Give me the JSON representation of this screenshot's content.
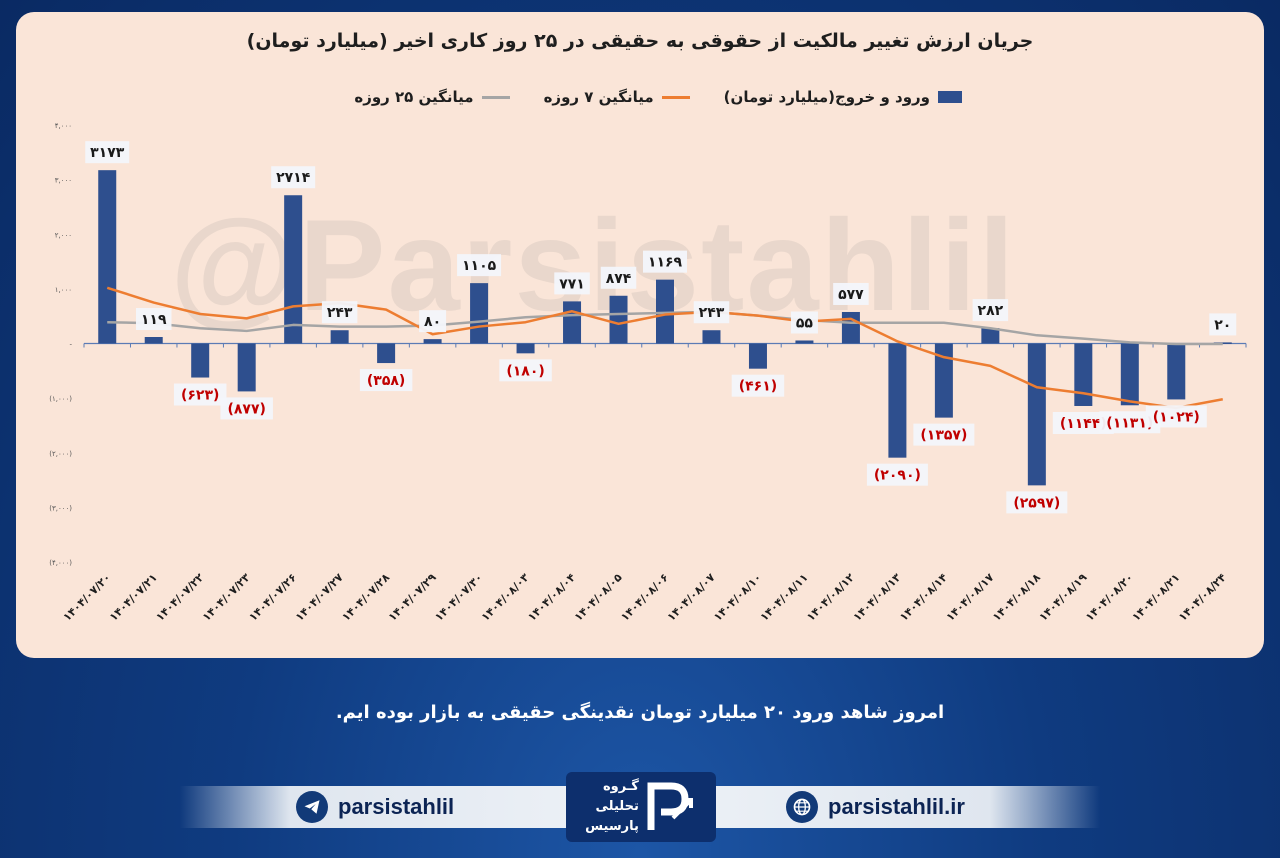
{
  "title": "جریان ارزش تغییر مالکیت از حقوقی به حقیقی در ۲۵ روز کاری اخیر (میلیارد تومان)",
  "legend": {
    "bars": "ورود و خروج(میلیارد تومان)",
    "ma7": "میانگین ۷ روزه",
    "ma25": "میانگین ۲۵ روزه"
  },
  "colors": {
    "bar": "#2e4f8e",
    "ma7": "#ed7d31",
    "ma25": "#a5a5a5",
    "negative_label": "#c00000",
    "positive_label": "#1a1a1a",
    "axis": "#5b7bb5"
  },
  "watermark": "@Parsistahlil",
  "caption": "امروز شاهد ورود ۲۰ میلیارد تومان نقدینگی حقیقی به بازار بوده ایم.",
  "footer": {
    "telegram": "parsistahlil",
    "telegram_icon": "telegram-plane-icon",
    "website": "parsistahlil.ir",
    "website_icon": "globe-icon",
    "logo_lines": [
      "گـروه",
      "تحلیلی",
      "پارسیس"
    ]
  },
  "chart_data": {
    "type": "bar",
    "categories": [
      "۱۴۰۴/۰۷/۲۰",
      "۱۴۰۴/۰۷/۲۱",
      "۱۴۰۴/۰۷/۲۲",
      "۱۴۰۴/۰۷/۲۳",
      "۱۴۰۴/۰۷/۲۶",
      "۱۴۰۴/۰۷/۲۷",
      "۱۴۰۴/۰۷/۲۸",
      "۱۴۰۴/۰۷/۲۹",
      "۱۴۰۴/۰۷/۳۰",
      "۱۴۰۴/۰۸/۰۳",
      "۱۴۰۴/۰۸/۰۴",
      "۱۴۰۴/۰۸/۰۵",
      "۱۴۰۴/۰۸/۰۶",
      "۱۴۰۴/۰۸/۰۷",
      "۱۴۰۴/۰۸/۱۰",
      "۱۴۰۴/۰۸/۱۱",
      "۱۴۰۴/۰۸/۱۲",
      "۱۴۰۴/۰۸/۱۳",
      "۱۴۰۴/۰۸/۱۴",
      "۱۴۰۴/۰۸/۱۷",
      "۱۴۰۴/۰۸/۱۸",
      "۱۴۰۴/۰۸/۱۹",
      "۱۴۰۴/۰۸/۲۰",
      "۱۴۰۴/۰۸/۲۱",
      "۱۴۰۴/۰۸/۲۴"
    ],
    "series": [
      {
        "name": "ورود و خروج(میلیارد تومان)",
        "kind": "bar",
        "values": [
          3173,
          119,
          -623,
          -877,
          2714,
          243,
          -358,
          80,
          1105,
          -180,
          771,
          874,
          1169,
          243,
          -461,
          55,
          577,
          -2090,
          -1357,
          282,
          -2597,
          -1144,
          -1131,
          -1024,
          20
        ],
        "labels": [
          "۳۱۷۳",
          "۱۱۹",
          "(۶۲۳)",
          "(۸۷۷)",
          "۲۷۱۴",
          "۲۴۳",
          "(۳۵۸)",
          "۸۰",
          "۱۱۰۵",
          "(۱۸۰)",
          "۷۷۱",
          "۸۷۴",
          "۱۱۶۹",
          "۲۴۳",
          "(۴۶۱)",
          "۵۵",
          "۵۷۷",
          "(۲۰۹۰)",
          "(۱۳۵۷)",
          "۲۸۲",
          "(۲۵۹۷)",
          "(۱۱۴۴)",
          "(۱۱۳۱)",
          "(۱۰۲۴)",
          "۲۰"
        ]
      },
      {
        "name": "میانگین ۷ روزه",
        "kind": "line",
        "values": [
          1020,
          750,
          540,
          460,
          680,
          740,
          620,
          170,
          310,
          390,
          590,
          360,
          530,
          580,
          510,
          400,
          450,
          40,
          -250,
          -410,
          -800,
          -910,
          -1060,
          -1180,
          -1020
        ]
      },
      {
        "name": "میانگین ۲۵ روزه",
        "kind": "line",
        "values": [
          390,
          370,
          280,
          230,
          340,
          310,
          310,
          330,
          400,
          480,
          520,
          540,
          560,
          580,
          510,
          430,
          380,
          380,
          380,
          280,
          150,
          90,
          20,
          -10,
          -10
        ]
      }
    ],
    "ylim": [
      -4000,
      4000
    ],
    "yticks": [
      -4000,
      -3000,
      -2000,
      -1000,
      0,
      1000,
      2000,
      3000,
      4000
    ],
    "ytick_labels": [
      "(۴,۰۰۰)",
      "(۳,۰۰۰)",
      "(۲,۰۰۰)",
      "(۱,۰۰۰)",
      "-",
      "۱,۰۰۰",
      "۲,۰۰۰",
      "۳,۰۰۰",
      "۴,۰۰۰"
    ],
    "grid": false,
    "legend_position": "top"
  }
}
